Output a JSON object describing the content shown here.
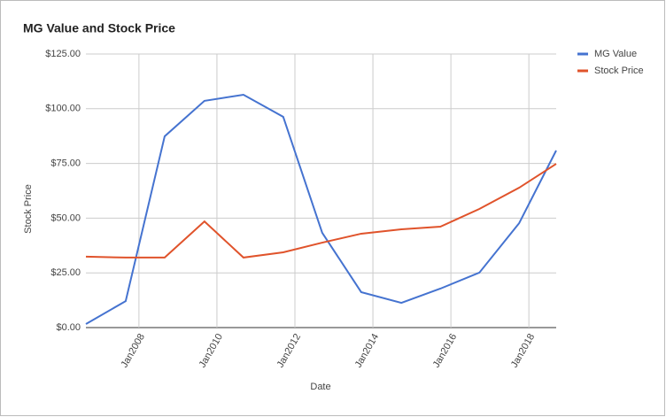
{
  "chart_data": {
    "type": "line",
    "title": "MG Value and Stock Price",
    "x_label": "Date",
    "y_label": "Stock Price",
    "x": [
      2006.64,
      2007.66,
      2008.66,
      2009.68,
      2010.68,
      2011.7,
      2012.7,
      2013.7,
      2014.73,
      2015.73,
      2016.73,
      2017.75,
      2018.7
    ],
    "series": [
      {
        "name": "MG Value",
        "color": "#4573d0",
        "values": [
          1.6,
          12.1,
          87.4,
          103.6,
          106.4,
          96.3,
          43.3,
          16.2,
          11.3,
          17.8,
          25.1,
          47.7,
          80.9
        ]
      },
      {
        "name": "Stock Price",
        "color": "#e0532b",
        "values": [
          32.4,
          32.0,
          32.0,
          48.5,
          32.0,
          34.4,
          38.8,
          42.9,
          44.9,
          46.1,
          54.2,
          63.9,
          74.8
        ]
      }
    ],
    "xlim": [
      2006.64,
      2018.7
    ],
    "xticks": [
      {
        "value": 2008,
        "label": "Jan2008"
      },
      {
        "value": 2010,
        "label": "Jan2010"
      },
      {
        "value": 2012,
        "label": "Jan2012"
      },
      {
        "value": 2014,
        "label": "Jan2014"
      },
      {
        "value": 2016,
        "label": "Jan2016"
      },
      {
        "value": 2018,
        "label": "Jan2018"
      }
    ],
    "ylim": [
      0,
      125
    ],
    "yticks": [
      {
        "value": 0,
        "label": "$0.00"
      },
      {
        "value": 25,
        "label": "$25.00"
      },
      {
        "value": 50,
        "label": "$50.00"
      },
      {
        "value": 75,
        "label": "$75.00"
      },
      {
        "value": 100,
        "label": "$100.00"
      },
      {
        "value": 125,
        "label": "$125.00"
      }
    ],
    "grid": true,
    "legend": "right"
  }
}
